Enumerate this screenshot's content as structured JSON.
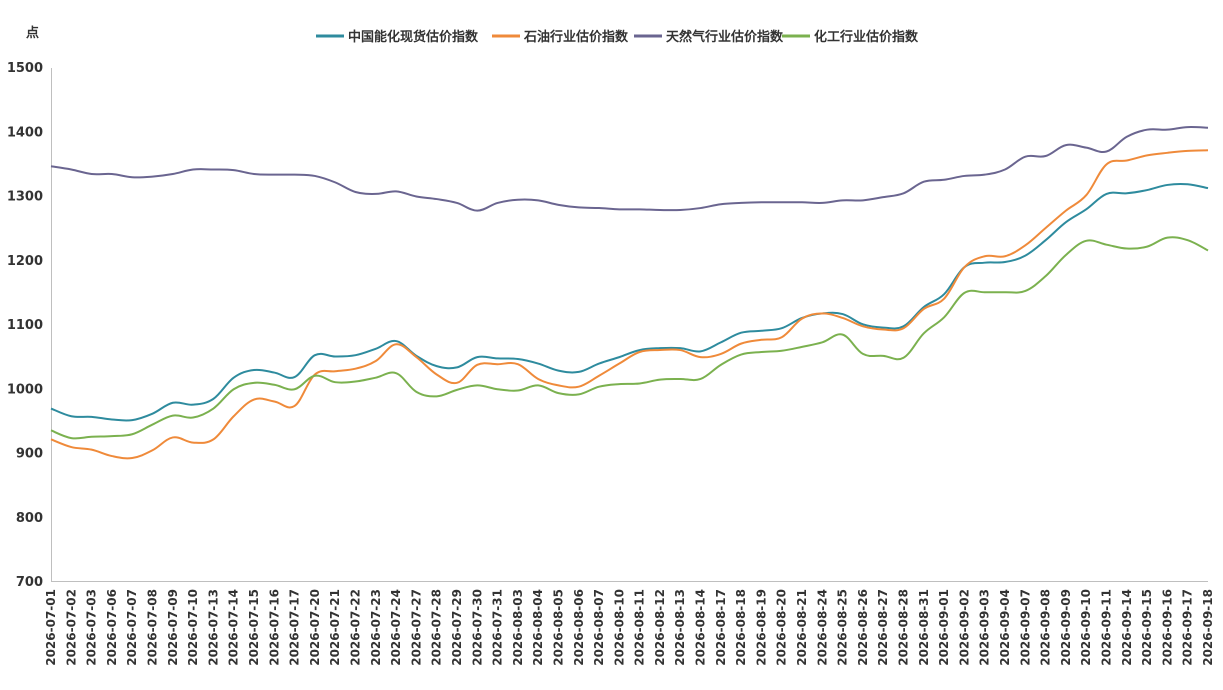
{
  "chart_data": {
    "type": "line",
    "y_unit": "点",
    "ylim": [
      700,
      1500
    ],
    "yticks": [
      700,
      800,
      900,
      1000,
      1100,
      1200,
      1300,
      1400,
      1500
    ],
    "grid": false,
    "legend_position": "top-center",
    "x": [
      "2026-07-01",
      "2026-07-02",
      "2026-07-03",
      "2026-07-06",
      "2026-07-07",
      "2026-07-08",
      "2026-07-09",
      "2026-07-10",
      "2026-07-13",
      "2026-07-14",
      "2026-07-15",
      "2026-07-16",
      "2026-07-17",
      "2026-07-20",
      "2026-07-21",
      "2026-07-22",
      "2026-07-23",
      "2026-07-24",
      "2026-07-27",
      "2026-07-28",
      "2026-07-29",
      "2026-07-30",
      "2026-07-31",
      "2026-08-03",
      "2026-08-04",
      "2026-08-05",
      "2026-08-06",
      "2026-08-07",
      "2026-08-10",
      "2026-08-11",
      "2026-08-12",
      "2026-08-13",
      "2026-08-14",
      "2026-08-17",
      "2026-08-18",
      "2026-08-19",
      "2026-08-20",
      "2026-08-21",
      "2026-08-24",
      "2026-08-25",
      "2026-08-26",
      "2026-08-27",
      "2026-08-28",
      "2026-08-31",
      "2026-09-01",
      "2026-09-02",
      "2026-09-03",
      "2026-09-04",
      "2026-09-07",
      "2026-09-08",
      "2026-09-09",
      "2026-09-10",
      "2026-09-11",
      "2026-09-14",
      "2026-09-15",
      "2026-09-16",
      "2026-09-17",
      "2026-09-18"
    ],
    "series": [
      {
        "name": "中国能化现货估价指数",
        "color": "#2e8b9e",
        "values": [
          970,
          958,
          957,
          953,
          952,
          962,
          979,
          976,
          985,
          1018,
          1030,
          1026,
          1019,
          1053,
          1051,
          1053,
          1063,
          1075,
          1052,
          1036,
          1034,
          1050,
          1048,
          1047,
          1040,
          1029,
          1027,
          1040,
          1050,
          1061,
          1064,
          1064,
          1059,
          1073,
          1088,
          1091,
          1095,
          1111,
          1118,
          1117,
          1101,
          1096,
          1098,
          1128,
          1148,
          1190,
          1197,
          1198,
          1208,
          1232,
          1260,
          1280,
          1304,
          1305,
          1310,
          1318,
          1319,
          1313
        ]
      },
      {
        "name": "石油行业估价指数",
        "color": "#ef8a3a",
        "values": [
          922,
          910,
          906,
          896,
          893,
          905,
          925,
          917,
          922,
          958,
          984,
          981,
          974,
          1023,
          1028,
          1032,
          1044,
          1070,
          1050,
          1023,
          1010,
          1038,
          1039,
          1039,
          1016,
          1006,
          1004,
          1021,
          1040,
          1058,
          1061,
          1061,
          1050,
          1055,
          1071,
          1077,
          1081,
          1110,
          1118,
          1111,
          1098,
          1093,
          1095,
          1125,
          1141,
          1190,
          1207,
          1207,
          1224,
          1251,
          1278,
          1302,
          1350,
          1356,
          1364,
          1368,
          1371,
          1372
        ]
      },
      {
        "name": "天然气行业估价指数",
        "color": "#6a6590",
        "values": [
          1347,
          1342,
          1335,
          1335,
          1330,
          1331,
          1335,
          1342,
          1342,
          1341,
          1335,
          1334,
          1334,
          1332,
          1322,
          1307,
          1304,
          1308,
          1300,
          1296,
          1290,
          1278,
          1290,
          1295,
          1294,
          1287,
          1283,
          1282,
          1280,
          1280,
          1279,
          1279,
          1282,
          1288,
          1290,
          1291,
          1291,
          1291,
          1290,
          1294,
          1294,
          1299,
          1305,
          1323,
          1326,
          1332,
          1334,
          1342,
          1362,
          1363,
          1380,
          1376,
          1370,
          1393,
          1404,
          1404,
          1408,
          1407
        ]
      },
      {
        "name": "化工行业估价指数",
        "color": "#7bb14f",
        "values": [
          936,
          924,
          926,
          927,
          930,
          945,
          959,
          956,
          970,
          1000,
          1010,
          1007,
          1000,
          1021,
          1011,
          1012,
          1018,
          1025,
          996,
          989,
          999,
          1006,
          1000,
          998,
          1006,
          994,
          992,
          1004,
          1008,
          1009,
          1015,
          1016,
          1016,
          1038,
          1054,
          1058,
          1060,
          1066,
          1073,
          1085,
          1055,
          1052,
          1049,
          1087,
          1112,
          1150,
          1151,
          1151,
          1153,
          1176,
          1209,
          1231,
          1225,
          1219,
          1222,
          1236,
          1232,
          1216
        ]
      }
    ]
  }
}
